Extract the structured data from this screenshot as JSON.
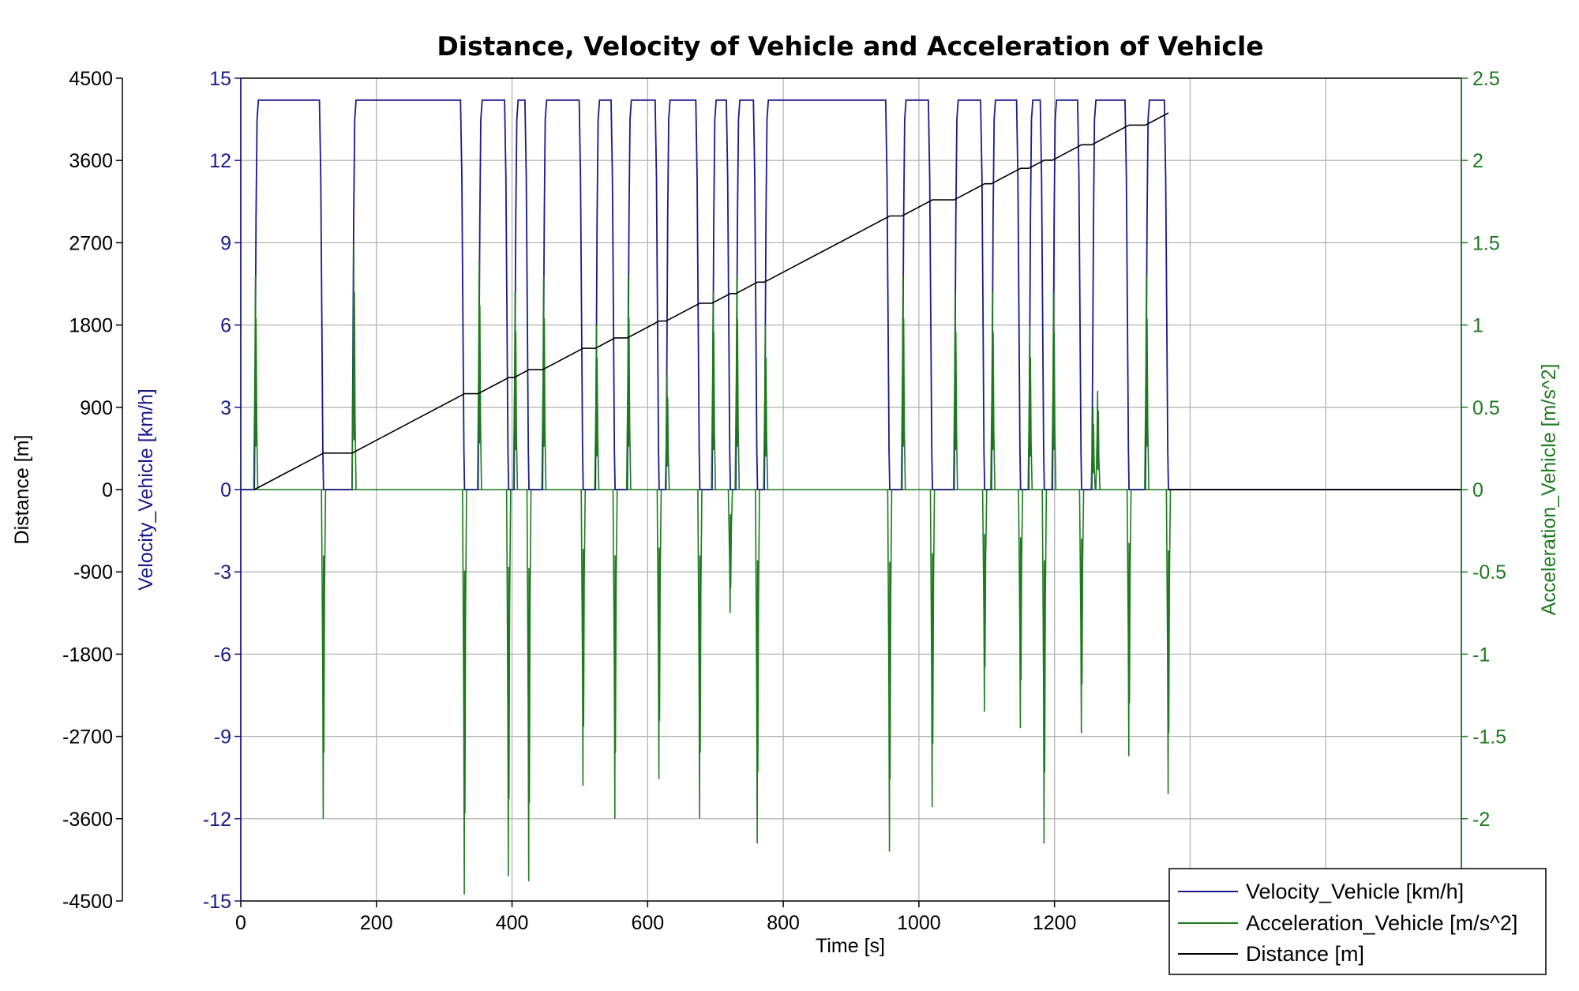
{
  "chart_data": {
    "type": "line",
    "title": "Distance, Velocity of Vehicle and Acceleration of Vehicle",
    "xlabel": "Time [s]",
    "xlim": [
      0,
      1800
    ],
    "x_ticks": [
      "0",
      "200",
      "400",
      "600",
      "800",
      "1000",
      "1200",
      "1400"
    ],
    "grid": true,
    "legend_position": "bottom-right",
    "axes": {
      "distance": {
        "label": "Distance [m]",
        "range": [
          -4500,
          4500
        ],
        "ticks": [
          "4500",
          "3600",
          "2700",
          "1800",
          "900",
          "0",
          "-900",
          "-1800",
          "-2700",
          "-3600",
          "-4500"
        ],
        "color": "#000000"
      },
      "velocity": {
        "label": "Velocity_Vehicle [km/h]",
        "range": [
          -15,
          15
        ],
        "ticks": [
          "15",
          "12",
          "9",
          "6",
          "3",
          "0",
          "-3",
          "-6",
          "-9",
          "-12",
          "-15"
        ],
        "color": "#1a1a8c"
      },
      "acceleration": {
        "label": "Acceleration_Vehicle [m/s^2]",
        "range": [
          -2.5,
          2.5
        ],
        "ticks": [
          "2.5",
          "2",
          "1.5",
          "1",
          "0.5",
          "0",
          "-0.5",
          "-1",
          "-1.5",
          "-2",
          "-2.5"
        ],
        "color": "#1e7a1e"
      }
    },
    "series": [
      {
        "name": "Velocity_Vehicle [km/h]",
        "axis": "velocity",
        "color": "#1a1a8c",
        "cruise_speed": 14.2,
        "moving_intervals": [
          [
            20,
            122
          ],
          [
            164,
            330
          ],
          [
            350,
            395
          ],
          [
            403,
            425
          ],
          [
            445,
            505
          ],
          [
            523,
            552
          ],
          [
            570,
            617
          ],
          [
            627,
            677
          ],
          [
            695,
            722
          ],
          [
            730,
            762
          ],
          [
            772,
            957
          ],
          [
            975,
            1020
          ],
          [
            1052,
            1097
          ],
          [
            1107,
            1150
          ],
          [
            1162,
            1185
          ],
          [
            1197,
            1240
          ],
          [
            1255,
            1310
          ],
          [
            1334,
            1368
          ]
        ],
        "stop_time": 1368,
        "end_time": 1800
      },
      {
        "name": "Acceleration_Vehicle [m/s^2]",
        "axis": "acceleration",
        "color": "#1e7a1e",
        "accel_peaks": [
          [
            22,
            1.3
          ],
          [
            167,
            1.5
          ],
          [
            352,
            1.4
          ],
          [
            405,
            1.2
          ],
          [
            447,
            1.3
          ],
          [
            525,
            1.0
          ],
          [
            572,
            1.3
          ],
          [
            629,
            0.7
          ],
          [
            697,
            1.2
          ],
          [
            732,
            1.3
          ],
          [
            774,
            1.0
          ],
          [
            977,
            1.3
          ],
          [
            1054,
            1.2
          ],
          [
            1109,
            1.2
          ],
          [
            1164,
            1.0
          ],
          [
            1199,
            1.2
          ],
          [
            1257,
            0.5
          ],
          [
            1264,
            0.6
          ],
          [
            1336,
            1.3
          ]
        ],
        "decel_peaks": [
          [
            122,
            -2.0
          ],
          [
            330,
            -2.46
          ],
          [
            395,
            -2.35
          ],
          [
            425,
            -2.38
          ],
          [
            505,
            -1.8
          ],
          [
            552,
            -2.0
          ],
          [
            617,
            -1.76
          ],
          [
            677,
            -2.0
          ],
          [
            722,
            -0.75
          ],
          [
            762,
            -2.15
          ],
          [
            957,
            -2.2
          ],
          [
            1020,
            -1.93
          ],
          [
            1097,
            -1.35
          ],
          [
            1150,
            -1.45
          ],
          [
            1185,
            -2.15
          ],
          [
            1240,
            -1.48
          ],
          [
            1310,
            -1.62
          ],
          [
            1368,
            -1.85
          ]
        ]
      },
      {
        "name": "Distance [m]",
        "axis": "distance",
        "color": "#000000",
        "end_distance": 4120,
        "final_value": 0
      }
    ]
  }
}
